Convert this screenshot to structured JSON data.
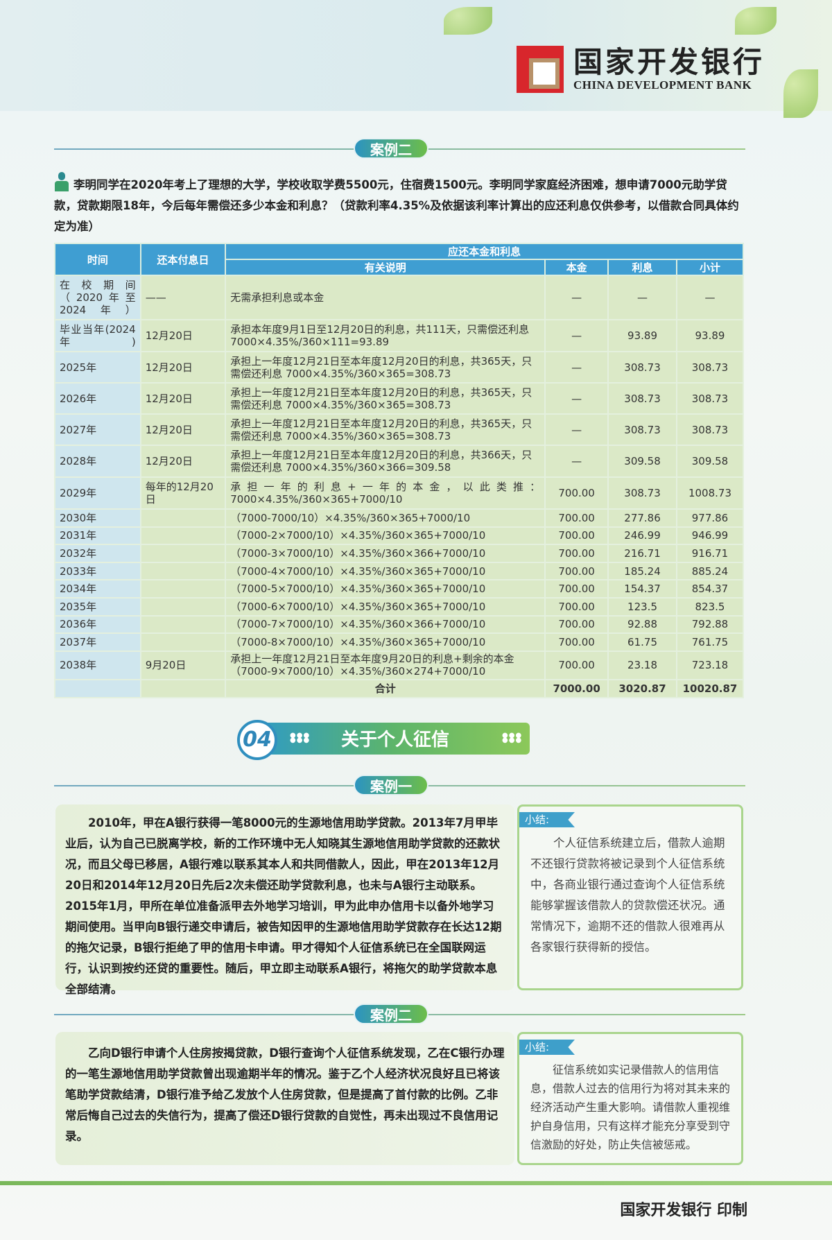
{
  "header": {
    "logo_cn": "国家开发银行",
    "logo_en": "CHINA DEVELOPMENT BANK"
  },
  "case2_top": {
    "tag": "案例二",
    "text": "李明同学在2020年考上了理想的大学，学校收取学费5500元，住宿费1500元。李明同学家庭经济困难，想申请7000元助学贷款，贷款期限18年，今后每年需偿还多少本金和利息？（贷款利率4.35%及依据该利率计算出的应还利息仅供参考，以借款合同具体约定为准）"
  },
  "table": {
    "headers": {
      "time": "时间",
      "date": "还本付息日",
      "group": "应还本金和利息",
      "desc": "有关说明",
      "principal": "本金",
      "interest": "利息",
      "subtotal": "小计"
    },
    "rows": [
      [
        "在校期间（2020年至2024年）",
        "——",
        "无需承担利息或本金",
        "—",
        "—",
        "—"
      ],
      [
        "毕业当年(2024年)",
        "12月20日",
        "承担本年度9月1日至12月20日的利息，共111天，只需偿还利息 7000×4.35%/360×111=93.89",
        "—",
        "93.89",
        "93.89"
      ],
      [
        "2025年",
        "12月20日",
        "承担上一年度12月21日至本年度12月20日的利息，共365天，只需偿还利息 7000×4.35%/360×365=308.73",
        "—",
        "308.73",
        "308.73"
      ],
      [
        "2026年",
        "12月20日",
        "承担上一年度12月21日至本年度12月20日的利息，共365天，只需偿还利息 7000×4.35%/360×365=308.73",
        "—",
        "308.73",
        "308.73"
      ],
      [
        "2027年",
        "12月20日",
        "承担上一年度12月21日至本年度12月20日的利息，共365天，只需偿还利息 7000×4.35%/360×365=308.73",
        "—",
        "308.73",
        "308.73"
      ],
      [
        "2028年",
        "12月20日",
        "承担上一年度12月21日至本年度12月20日的利息，共366天，只需偿还利息 7000×4.35%/360×366=309.58",
        "—",
        "309.58",
        "309.58"
      ],
      [
        "2029年",
        "每年的12月20日",
        "承担一年的利息+一年的本金，以此类推：7000×4.35%/360×365+7000/10",
        "700.00",
        "308.73",
        "1008.73"
      ],
      [
        "2030年",
        "",
        "（7000-7000/10）×4.35%/360×365+7000/10",
        "700.00",
        "277.86",
        "977.86"
      ],
      [
        "2031年",
        "",
        "（7000-2×7000/10）×4.35%/360×365+7000/10",
        "700.00",
        "246.99",
        "946.99"
      ],
      [
        "2032年",
        "",
        "（7000-3×7000/10）×4.35%/360×366+7000/10",
        "700.00",
        "216.71",
        "916.71"
      ],
      [
        "2033年",
        "",
        "（7000-4×7000/10）×4.35%/360×365+7000/10",
        "700.00",
        "185.24",
        "885.24"
      ],
      [
        "2034年",
        "",
        "（7000-5×7000/10）×4.35%/360×365+7000/10",
        "700.00",
        "154.37",
        "854.37"
      ],
      [
        "2035年",
        "",
        "（7000-6×7000/10）×4.35%/360×365+7000/10",
        "700.00",
        "123.5",
        "823.5"
      ],
      [
        "2036年",
        "",
        "（7000-7×7000/10）×4.35%/360×366+7000/10",
        "700.00",
        "92.88",
        "792.88"
      ],
      [
        "2037年",
        "",
        "（7000-8×7000/10）×4.35%/360×365+7000/10",
        "700.00",
        "61.75",
        "761.75"
      ],
      [
        "2038年",
        "9月20日",
        "承担上一年度12月21日至本年度9月20日的利息+剩余的本金（7000-9×7000/10）×4.35%/360×274+7000/10",
        "700.00",
        "23.18",
        "723.18"
      ]
    ],
    "total": {
      "label": "合计",
      "principal": "7000.00",
      "interest": "3020.87",
      "subtotal": "10020.87"
    }
  },
  "section04": {
    "number": "04",
    "title": "关于个人征信"
  },
  "case1": {
    "tag": "案例一",
    "text": "2010年，甲在A银行获得一笔8000元的生源地信用助学贷款。2013年7月甲毕业后，认为自己已脱离学校，新的工作环境中无人知晓其生源地信用助学贷款的还款状况，而且父母已移居，A银行难以联系其本人和共同借款人，因此，甲在2013年12月20日和2014年12月20日先后2次未偿还助学贷款利息，也未与A银行主动联系。2015年1月，甲所在单位准备派甲去外地学习培训，甲为此申办信用卡以备外地学习期间使用。当甲向B银行递交申请后，被告知因甲的生源地信用助学贷款存在长达12期的拖欠记录，B银行拒绝了甲的信用卡申请。甲才得知个人征信系统已在全国联网运行，认识到按约还贷的重要性。随后，甲立即主动联系A银行，将拖欠的助学贷款本息全部结清。",
    "summary_tag": "小结:",
    "summary": "个人征信系统建立后，借款人逾期不还银行贷款将被记录到个人征信系统中，各商业银行通过查询个人征信系统能够掌握该借款人的贷款偿还状况。通常情况下，逾期不还的借款人很难再从各家银行获得新的授信。"
  },
  "case2": {
    "tag": "案例二",
    "text": "乙向D银行申请个人住房按揭贷款，D银行查询个人征信系统发现，乙在C银行办理的一笔生源地信用助学贷款曾出现逾期半年的情况。鉴于乙个人经济状况良好且已将该笔助学贷款结清，D银行准予给乙发放个人住房贷款，但是提高了首付款的比例。乙非常后悔自己过去的失信行为，提高了偿还D银行贷款的自觉性，再未出现过不良信用记录。",
    "summary_tag": "小结:",
    "summary": "征信系统如实记录借款人的信用信息，借款人过去的信用行为将对其未来的经济活动产生重大影响。请借款人重视维护自身信用，只有这样才能充分享受到守信激励的好处，防止失信被惩戒。"
  },
  "footer": {
    "text": "国家开发银行 印制"
  }
}
